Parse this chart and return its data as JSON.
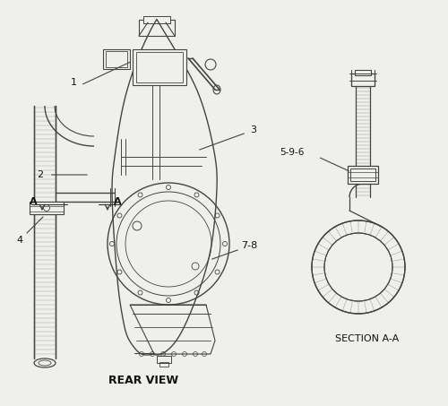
{
  "bg_color": "#efefeb",
  "line_color": "#444444",
  "hatch_color": "#888888",
  "title_rear": "REAR VIEW",
  "title_section": "SECTION A-A",
  "label_1": "1",
  "label_2": "2",
  "label_3": "3",
  "label_4": "4",
  "label_78": "7-8",
  "label_596": "5-9-6",
  "label_A_left": "A",
  "label_A_right": "A"
}
